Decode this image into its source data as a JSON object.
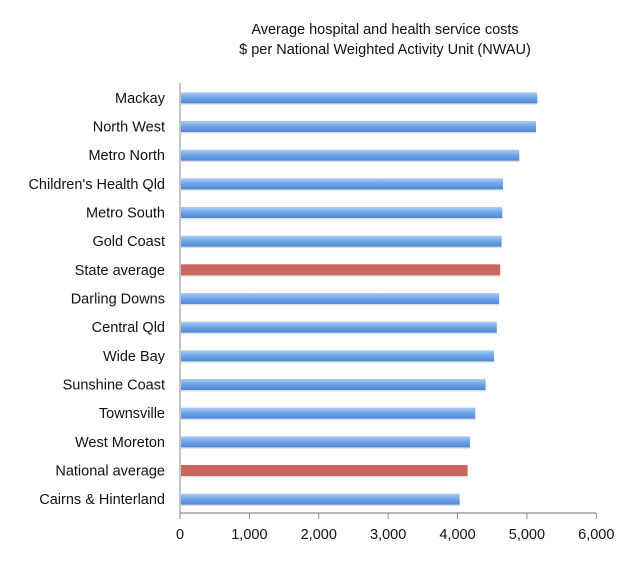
{
  "chart_data": {
    "type": "bar",
    "orientation": "horizontal",
    "title": "Average hospital and health service costs",
    "subtitle": "$ per National Weighted Activity Unit (NWAU)",
    "categories": [
      "Mackay",
      "North West",
      "Metro North",
      "Children's Health Qld",
      "Metro South",
      "Gold Coast",
      "State average",
      "Darling Downs",
      "Central Qld",
      "Wide Bay",
      "Sunshine Coast",
      "Townsville",
      "West Moreton",
      "National average",
      "Cairns & Hinterland"
    ],
    "values": [
      5150,
      5130,
      4890,
      4655,
      4645,
      4635,
      4615,
      4600,
      4565,
      4525,
      4405,
      4255,
      4180,
      4145,
      4030
    ],
    "highlight": [
      "State average",
      "National average"
    ],
    "colors": {
      "default": "#6fa3e6",
      "highlight": "#cc6660"
    },
    "xlim": [
      0,
      6000
    ],
    "xticks": [
      "0",
      "1,000",
      "2,000",
      "3,000",
      "4,000",
      "5,000",
      "6,000"
    ],
    "xtick_values": [
      0,
      1000,
      2000,
      3000,
      4000,
      5000,
      6000
    ],
    "grid": false,
    "legend": "none"
  }
}
